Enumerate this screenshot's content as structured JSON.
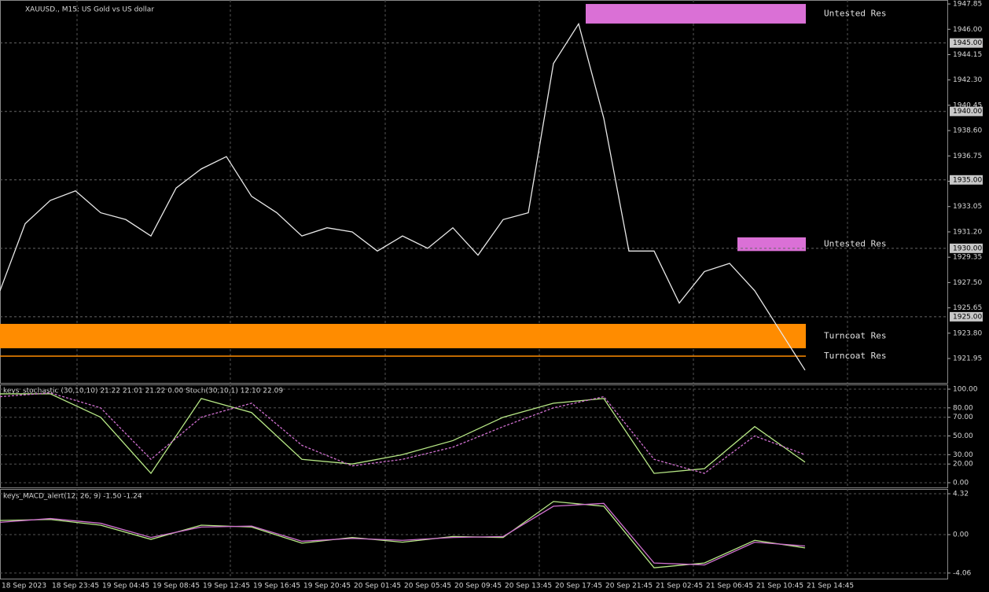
{
  "chart_data": [
    {
      "type": "line",
      "title": "XAUUSD., M15:  US Gold vs US dollar",
      "categories": [
        "18 Sep 2023",
        null,
        "18 Sep 23:45",
        null,
        "19 Sep 04:45",
        null,
        "19 Sep 08:45",
        null,
        "19 Sep 12:45",
        null,
        "19 Sep 16:45",
        null,
        "19 Sep 20:45",
        null,
        "20 Sep 01:45",
        null,
        "20 Sep 05:45",
        null,
        "20 Sep 09:45",
        null,
        "20 Sep 13:45",
        null,
        "20 Sep 17:45",
        null,
        "20 Sep 21:45",
        null,
        "21 Sep 02:45",
        null,
        "21 Sep 06:45",
        null,
        "21 Sep 10:45",
        null,
        "21 Sep 14:45"
      ],
      "series": [
        {
          "color": "#e8e8e8",
          "values": [
            1926.9,
            1931.8,
            1933.5,
            1934.2,
            1932.6,
            1932.1,
            1930.9,
            1934.4,
            1935.8,
            1936.7,
            1933.8,
            1932.6,
            1930.9,
            1931.5,
            1931.2,
            1929.8,
            1930.9,
            1930.0,
            1931.5,
            1929.5,
            1932.1,
            1932.6,
            1943.5,
            1946.4,
            1939.5,
            1929.8,
            1929.8,
            1926.0,
            1928.3,
            1928.9,
            1926.9,
            1924.0,
            1921.1
          ]
        }
      ],
      "ylim": [
        1920.17,
        1948.14
      ],
      "yticks": [
        1947.85,
        {
          "value": 1946.0,
          "label": "1946.00"
        },
        1944.15,
        {
          "value": 1942.3,
          "label": "1942.30"
        },
        {
          "value": 1940.45,
          "label": "1940.45"
        },
        {
          "value": 1938.6,
          "label": "1938.60"
        },
        1936.75,
        {
          "value": 1934.9,
          "label": "1934.90"
        },
        1933.05,
        {
          "value": 1931.2,
          "label": "1931.20"
        },
        1929.35,
        {
          "value": 1927.5,
          "label": "1927.50"
        },
        1925.65,
        {
          "value": 1923.8,
          "label": "1923.80"
        },
        1921.95
      ],
      "price_levels": [
        {
          "value": 1945,
          "label": "1945.00"
        },
        {
          "value": 1940,
          "label": "1940.00"
        },
        {
          "value": 1935,
          "label": "1935.00"
        },
        {
          "value": 1930,
          "label": "1930.00"
        },
        {
          "value": 1925,
          "label": "1925.00"
        }
      ],
      "zones": [
        {
          "label": "Untested Res",
          "range": [
            1946.42,
            1947.85
          ],
          "color": "#da70d6"
        },
        {
          "label": "Untested Res",
          "range": [
            1929.8,
            1930.8
          ],
          "color": "#da70d6"
        },
        {
          "label": "Turncoat Res",
          "range": [
            1922.7,
            1924.48
          ],
          "color": "#ff8c00"
        },
        {
          "label": "Turncoat Res",
          "range": [
            1922.12,
            1922.12
          ],
          "color": "#ff8c00"
        }
      ]
    },
    {
      "type": "line",
      "title": "keys_stochastic (30,10,10) 21.22 21.01 21.22 0.00 Stoch(30,10,1) 12.10 22.09",
      "series": [
        {
          "color": "#b8e986",
          "values": [
            95,
            95,
            70,
            10,
            90,
            75,
            25,
            20,
            30,
            45,
            70,
            85,
            90,
            10,
            15,
            60,
            22
          ]
        },
        {
          "color": "#d070d0",
          "values": [
            92,
            96,
            80,
            25,
            70,
            85,
            40,
            18,
            25,
            38,
            60,
            80,
            92,
            25,
            10,
            50,
            30
          ]
        }
      ],
      "ylim": [
        -5.04,
        105.04
      ],
      "yticks": [
        {
          "value": 100,
          "label": "100.00"
        },
        {
          "value": 80,
          "label": "80.00"
        },
        {
          "value": 70,
          "label": "70.00"
        },
        {
          "value": 50,
          "label": "50.00"
        },
        {
          "value": 30,
          "label": "30.00"
        },
        {
          "value": 20,
          "label": "20.00"
        },
        {
          "value": 0,
          "label": "0.00"
        }
      ]
    },
    {
      "type": "line",
      "title": "keys_MACD_alert(12, 26, 9) -1.50 -1.24",
      "series": [
        {
          "color": "#b8e986",
          "values": [
            1.5,
            1.6,
            1.0,
            -0.5,
            1.0,
            0.8,
            -0.9,
            -0.3,
            -0.8,
            -0.2,
            -0.3,
            3.5,
            3.0,
            -3.5,
            -3.0,
            -0.6,
            -1.4
          ]
        },
        {
          "color": "#d070d0",
          "values": [
            1.3,
            1.7,
            1.2,
            -0.3,
            0.8,
            0.9,
            -0.7,
            -0.4,
            -0.6,
            -0.3,
            -0.2,
            3.0,
            3.3,
            -3.0,
            -3.2,
            -0.8,
            -1.2
          ]
        }
      ],
      "ylim": [
        -4.65,
        4.82
      ],
      "yticks": [
        4.32,
        {
          "value": 0,
          "label": "0.00"
        },
        -4.06
      ]
    }
  ]
}
